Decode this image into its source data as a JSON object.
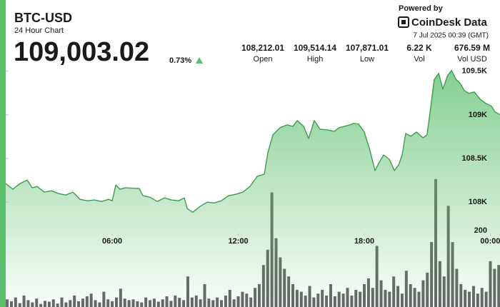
{
  "header": {
    "title": "BTC-USD",
    "subtitle": "24 Hour Chart",
    "price": "109,003.02",
    "change": "0.73%",
    "stats": [
      {
        "value": "108,212.01",
        "label": "Open"
      },
      {
        "value": "109,514.14",
        "label": "High"
      },
      {
        "value": "107,871.01",
        "label": "Low"
      },
      {
        "value": "6.22 K",
        "label": "Vol"
      },
      {
        "value": "676.59 M",
        "label": "Vol USD"
      }
    ]
  },
  "branding": {
    "powered_by": "Powered by",
    "brand": "CoinDesk Data",
    "timestamp": "7 Jul 2025 00:39 (GMT)"
  },
  "chart_data": {
    "type": "area",
    "price": {
      "color": "#3f9c4f",
      "x": [
        0.93,
        1.27,
        1.61,
        1.95,
        2.19,
        2.43,
        2.77,
        3.11,
        3.45,
        3.79,
        4.13,
        4.47,
        4.81,
        5.15,
        5.49,
        5.83,
        6.0,
        6.17,
        6.37,
        6.61,
        7.29,
        7.46,
        7.8,
        8.14,
        8.48,
        8.82,
        9.16,
        9.43,
        9.57,
        9.84,
        10.18,
        10.52,
        10.86,
        11.2,
        11.54,
        11.88,
        12.22,
        12.56,
        12.9,
        13.24,
        13.41,
        13.65,
        13.99,
        14.33,
        14.6,
        14.81,
        15.11,
        15.35,
        15.62,
        15.89,
        16.23,
        16.57,
        16.81,
        17.05,
        17.32,
        17.49,
        17.73,
        18.0,
        18.27,
        18.51,
        18.68,
        18.92,
        19.19,
        19.43,
        19.63,
        19.8,
        19.97,
        20.21,
        20.48,
        20.79,
        20.99,
        21.16,
        21.33,
        21.54,
        21.74,
        21.95,
        22.15,
        22.36,
        22.56,
        22.76,
        22.97,
        23.24,
        23.51,
        23.78,
        24.06,
        24.22,
        24.46
      ],
      "values": [
        108213,
        108148,
        108213,
        108254,
        108164,
        108180,
        108115,
        108131,
        108098,
        108082,
        108115,
        108033,
        108016,
        108025,
        108008,
        108033,
        108016,
        108197,
        108148,
        108164,
        108156,
        108074,
        108057,
        108008,
        108049,
        108025,
        108016,
        108049,
        107926,
        107885,
        107951,
        108000,
        107992,
        108016,
        108074,
        108090,
        108115,
        108180,
        108295,
        108320,
        108566,
        108771,
        108853,
        108885,
        108869,
        108934,
        108869,
        108730,
        108934,
        108836,
        108828,
        108812,
        108853,
        108869,
        108885,
        108902,
        108894,
        108803,
        108590,
        108361,
        108443,
        108541,
        108492,
        108361,
        108426,
        108541,
        108787,
        108754,
        108803,
        108738,
        108771,
        109082,
        109402,
        109476,
        109295,
        109443,
        109508,
        109410,
        109361,
        109279,
        109246,
        109262,
        109180,
        109131,
        109098,
        109033,
        109003
      ]
    },
    "volume": {
      "color": "#4a4a4a",
      "x": [
        1.0,
        1.2,
        1.4,
        1.6,
        1.8,
        2.0,
        2.2,
        2.4,
        2.6,
        2.8,
        3.0,
        3.2,
        3.4,
        3.6,
        3.8,
        4.0,
        4.2,
        4.4,
        4.6,
        4.8,
        5.0,
        5.2,
        5.4,
        5.6,
        5.8,
        6.0,
        6.2,
        6.4,
        6.6,
        6.8,
        7.0,
        7.2,
        7.4,
        7.6,
        7.8,
        8.0,
        8.2,
        8.4,
        8.6,
        8.8,
        9.0,
        9.2,
        9.4,
        9.6,
        9.8,
        10.0,
        10.2,
        10.4,
        10.6,
        10.8,
        11.0,
        11.2,
        11.4,
        11.6,
        11.8,
        12.0,
        12.2,
        12.4,
        12.6,
        12.8,
        13.0,
        13.2,
        13.4,
        13.6,
        13.8,
        14.0,
        14.2,
        14.4,
        14.6,
        14.8,
        15.0,
        15.2,
        15.4,
        15.6,
        15.8,
        16.0,
        16.2,
        16.4,
        16.6,
        16.8,
        17.0,
        17.2,
        17.4,
        17.6,
        17.8,
        18.0,
        18.2,
        18.4,
        18.6,
        18.8,
        19.0,
        19.2,
        19.4,
        19.6,
        19.8,
        20.0,
        20.2,
        20.4,
        20.6,
        20.8,
        21.0,
        21.2,
        21.4,
        21.6,
        21.8,
        22.0,
        22.2,
        22.4,
        22.6,
        22.8,
        23.0,
        23.2,
        23.4,
        23.6,
        23.8,
        24.0,
        24.2,
        24.4
      ],
      "values": [
        20,
        15,
        25,
        10,
        30,
        18,
        12,
        22,
        8,
        16,
        14,
        20,
        9,
        25,
        12,
        18,
        30,
        15,
        22,
        28,
        35,
        18,
        12,
        40,
        20,
        15,
        25,
        48,
        22,
        18,
        20,
        15,
        12,
        25,
        18,
        22,
        14,
        20,
        28,
        16,
        30,
        24,
        18,
        80,
        25,
        30,
        20,
        60,
        22,
        18,
        25,
        18,
        30,
        45,
        20,
        28,
        40,
        35,
        25,
        50,
        60,
        110,
        150,
        300,
        180,
        130,
        100,
        80,
        60,
        45,
        40,
        30,
        55,
        25,
        35,
        45,
        30,
        60,
        28,
        40,
        35,
        50,
        30,
        45,
        40,
        60,
        75,
        50,
        160,
        70,
        45,
        40,
        80,
        55,
        35,
        95,
        60,
        50,
        40,
        70,
        90,
        170,
        335,
        120,
        80,
        265,
        170,
        100,
        60,
        45,
        40,
        55,
        35,
        50,
        40,
        120,
        100,
        110
      ]
    },
    "xlim": [
      0.93,
      24.46
    ],
    "xticks": [
      {
        "value": 6,
        "label": "06:00"
      },
      {
        "value": 12,
        "label": "12:00"
      },
      {
        "value": 18,
        "label": "18:00"
      },
      {
        "value": 24,
        "label": "00:00"
      }
    ],
    "ylim": [
      106800,
      109620
    ],
    "yticks": [
      {
        "value": 108000,
        "label": "108K"
      },
      {
        "value": 108500,
        "label": "108.5K"
      },
      {
        "value": 109000,
        "label": "109K"
      },
      {
        "value": 109500,
        "label": "109.5K"
      }
    ],
    "y2lim": [
      0,
      645
    ],
    "y2ticks": [
      200
    ],
    "grid": false
  }
}
